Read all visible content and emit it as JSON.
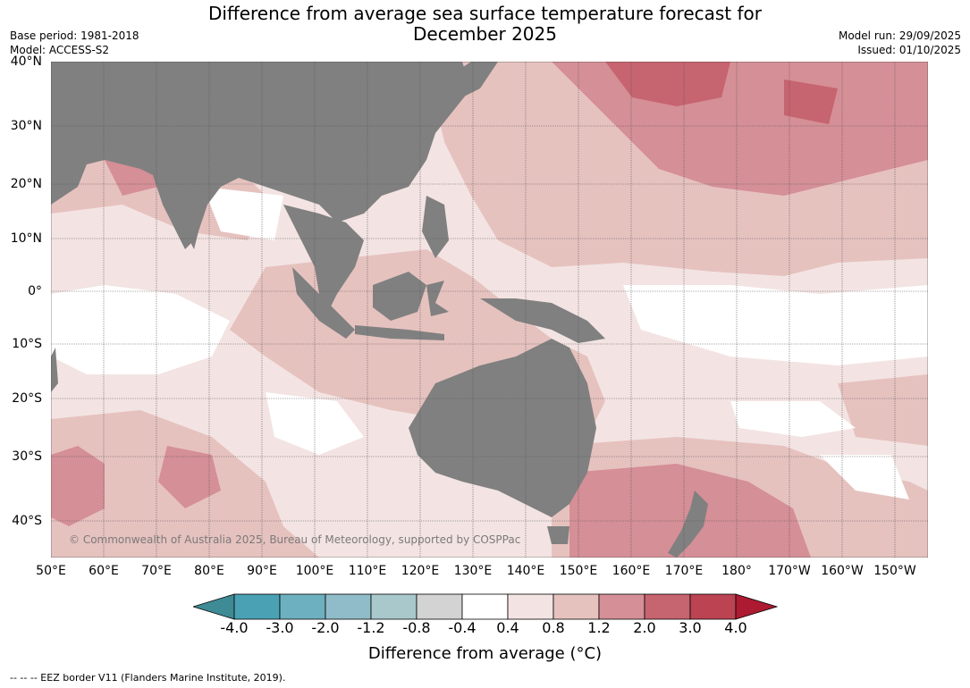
{
  "title": {
    "line1": "Difference from average sea surface temperature forecast for",
    "line2": "December 2025"
  },
  "meta_left": {
    "base_period": "Base period: 1981-2018",
    "model": "Model: ACCESS-S2"
  },
  "meta_right": {
    "model_run": "Model run: 29/09/2025",
    "issued": "Issued: 01/10/2025"
  },
  "map": {
    "lat_labels": [
      "40°N",
      "30°N",
      "20°N",
      "10°N",
      "0°",
      "10°S",
      "20°S",
      "30°S",
      "40°S"
    ],
    "lon_labels": [
      "50°E",
      "60°E",
      "70°E",
      "80°E",
      "90°E",
      "100°E",
      "110°E",
      "120°E",
      "130°E",
      "140°E",
      "150°E",
      "160°E",
      "170°E",
      "180°",
      "170°W",
      "160°W",
      "150°W"
    ],
    "copyright": "© Commonwealth of Australia 2025, Bureau of Meteorology, supported by COSPPac",
    "land_color": "#808080"
  },
  "colorbar": {
    "tick_labels": [
      "-4.0",
      "-3.0",
      "-2.0",
      "-1.2",
      "-0.8",
      "-0.4",
      "0.4",
      "0.8",
      "1.2",
      "2.0",
      "3.0",
      "4.0"
    ],
    "colors": [
      "#3e8a95",
      "#4aa1b4",
      "#6db0bf",
      "#8fbcc8",
      "#a9c8cc",
      "#d3d3d3",
      "#ffffff",
      "#f3e4e3",
      "#e6c2bf",
      "#d58f96",
      "#c6646f",
      "#bc4351",
      "#ac1b31"
    ],
    "title": "Difference from average (°C)"
  },
  "footer": {
    "legend_text": "--  --  -- EEZ border V11 (Flanders Marine Institute, 2019)."
  }
}
